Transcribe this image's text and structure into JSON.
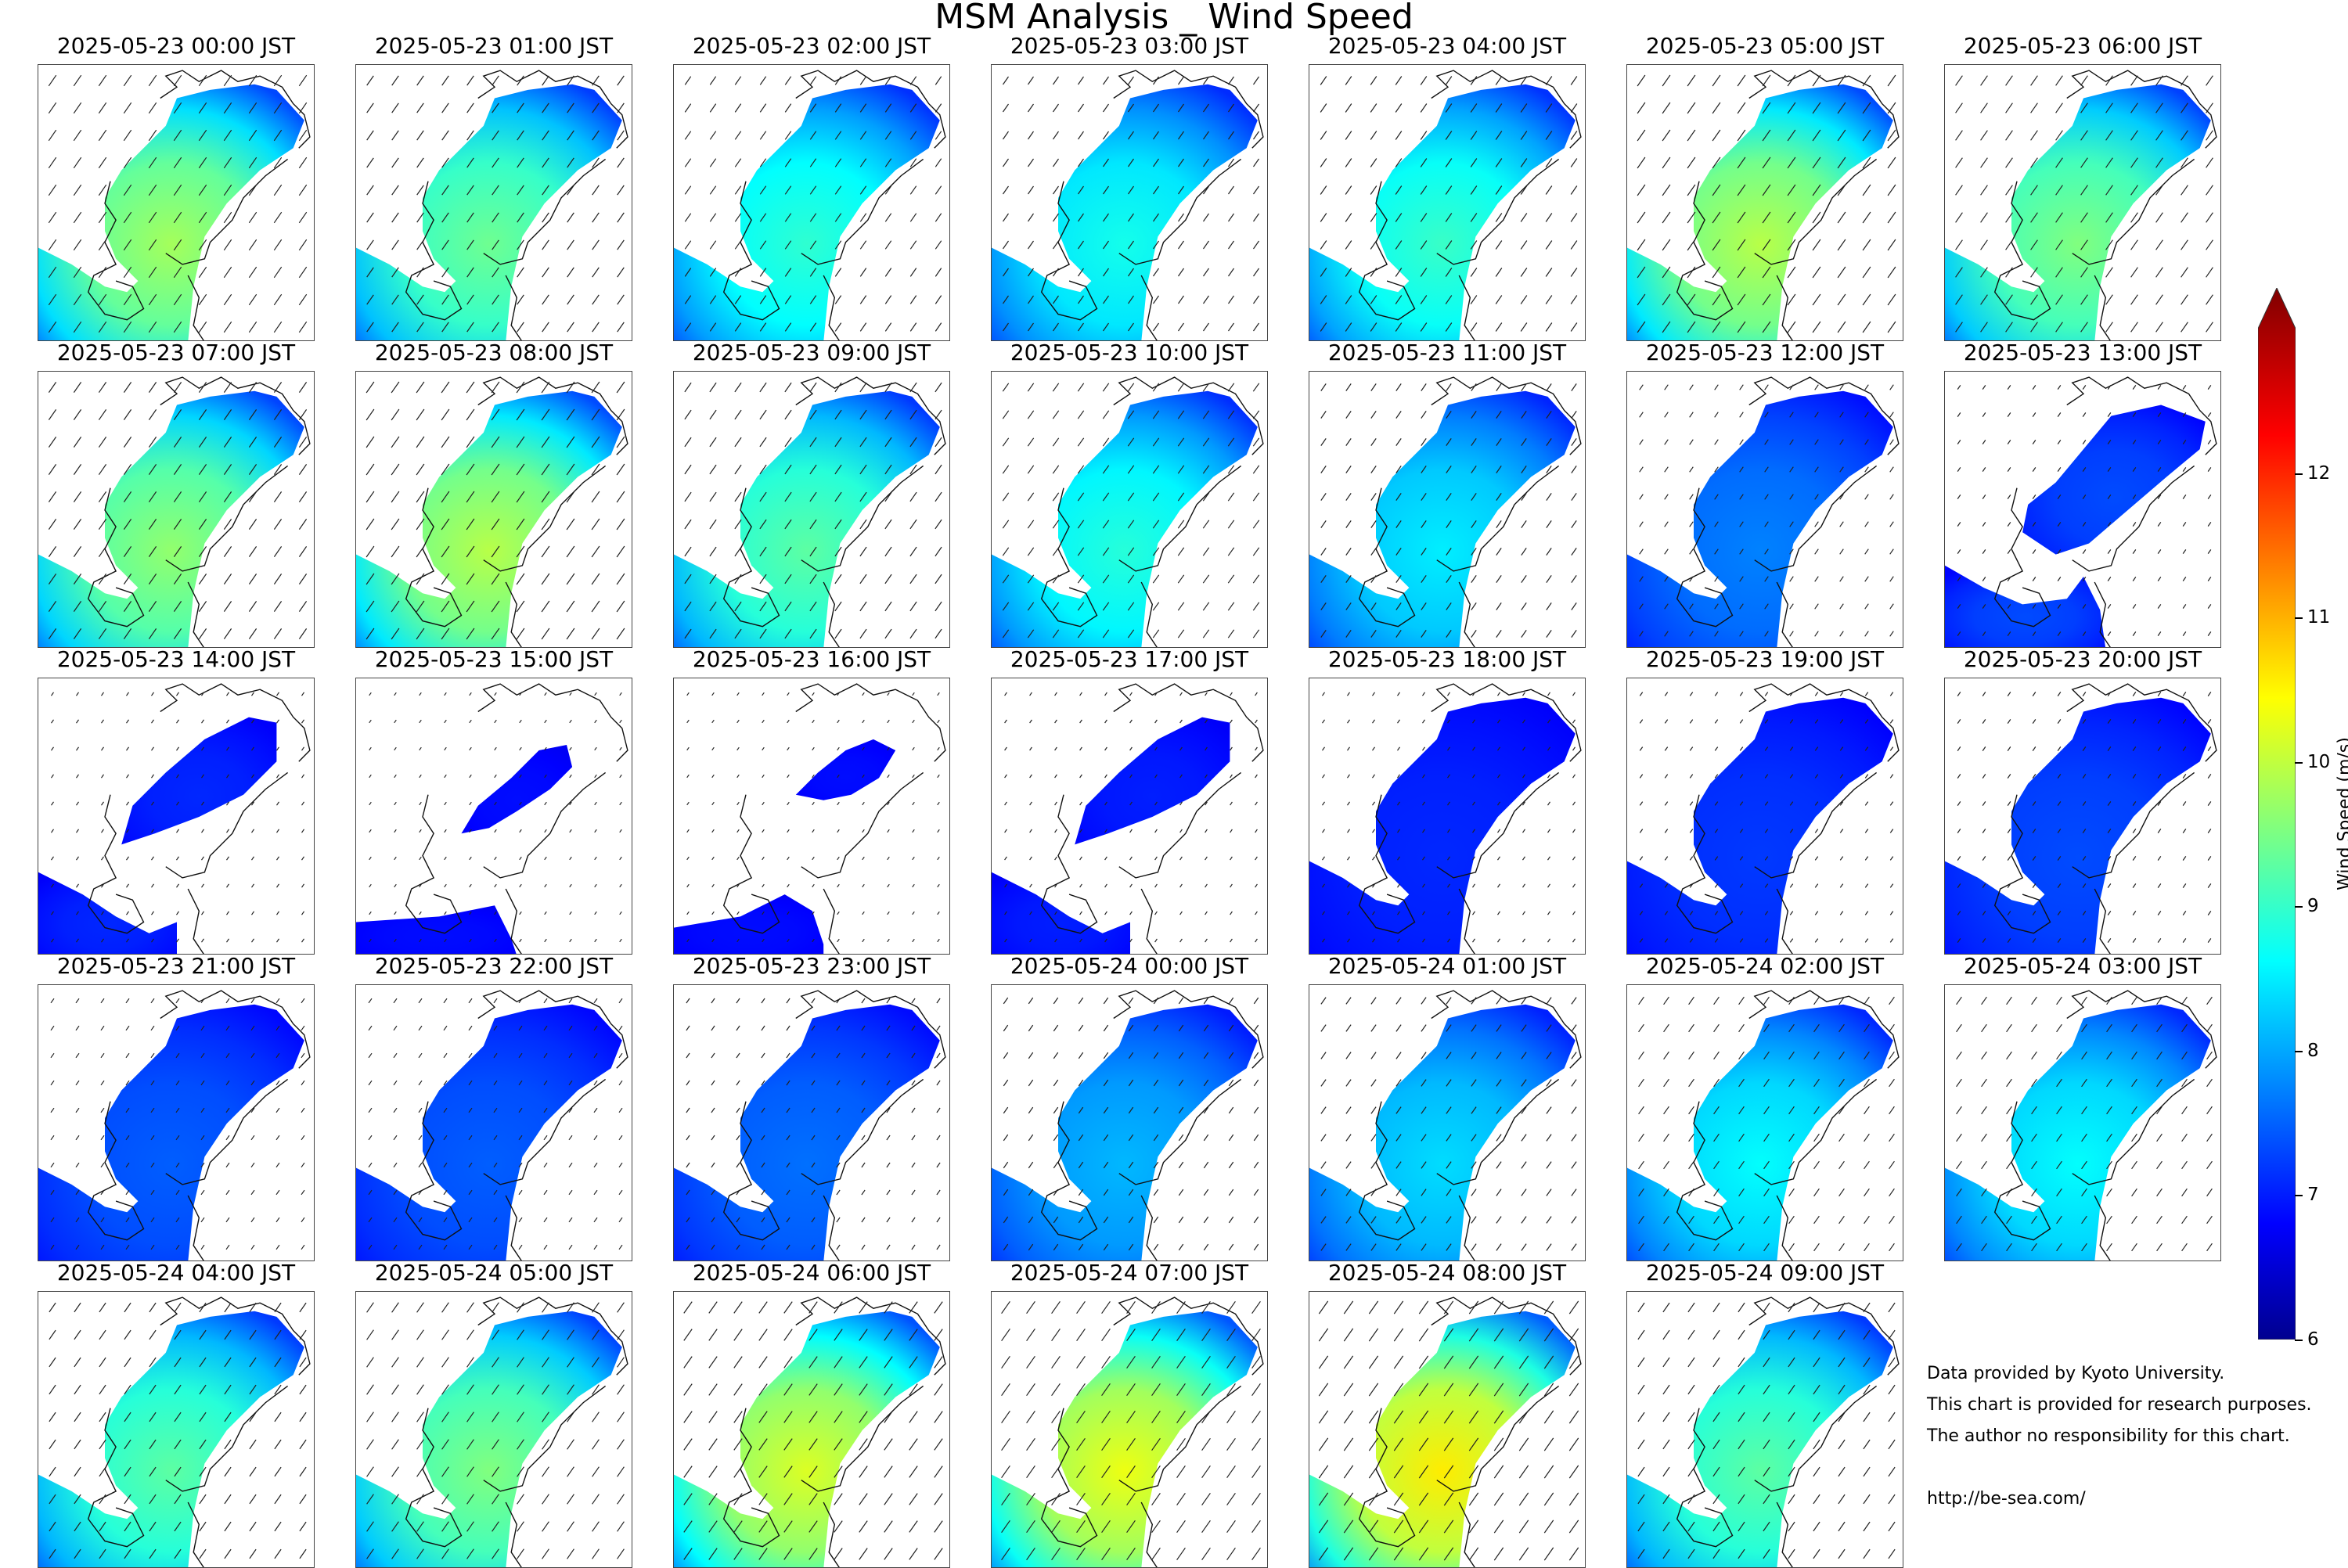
{
  "chart_data": {
    "type": "heatmap",
    "title": "MSM Analysis _ Wind Speed",
    "colorbar": {
      "label": "Wind Speed (m/s)",
      "range": [
        6,
        13
      ],
      "ticks": [
        "6",
        "7",
        "8",
        "9",
        "10",
        "11",
        "12"
      ],
      "extend": "max",
      "colormap": "jet"
    },
    "panels": [
      {
        "label": "2025-05-23 00:00 JST",
        "level": 0.48,
        "shape": "full"
      },
      {
        "label": "2025-05-23 01:00 JST",
        "level": 0.42,
        "shape": "full"
      },
      {
        "label": "2025-05-23 02:00 JST",
        "level": 0.35,
        "shape": "full"
      },
      {
        "label": "2025-05-23 03:00 JST",
        "level": 0.32,
        "shape": "full"
      },
      {
        "label": "2025-05-23 04:00 JST",
        "level": 0.36,
        "shape": "full"
      },
      {
        "label": "2025-05-23 05:00 JST",
        "level": 0.5,
        "shape": "full"
      },
      {
        "label": "2025-05-23 06:00 JST",
        "level": 0.44,
        "shape": "full"
      },
      {
        "label": "2025-05-23 07:00 JST",
        "level": 0.46,
        "shape": "full"
      },
      {
        "label": "2025-05-23 08:00 JST",
        "level": 0.5,
        "shape": "full"
      },
      {
        "label": "2025-05-23 09:00 JST",
        "level": 0.4,
        "shape": "full"
      },
      {
        "label": "2025-05-23 10:00 JST",
        "level": 0.34,
        "shape": "full"
      },
      {
        "label": "2025-05-23 11:00 JST",
        "level": 0.28,
        "shape": "full"
      },
      {
        "label": "2025-05-23 12:00 JST",
        "level": 0.16,
        "shape": "full"
      },
      {
        "label": "2025-05-23 13:00 JST",
        "level": 0.1,
        "shape": "split"
      },
      {
        "label": "2025-05-23 14:00 JST",
        "level": 0.06,
        "shape": "blob"
      },
      {
        "label": "2025-05-23 15:00 JST",
        "level": 0.03,
        "shape": "small"
      },
      {
        "label": "2025-05-23 16:00 JST",
        "level": 0.03,
        "shape": "tiny"
      },
      {
        "label": "2025-05-23 17:00 JST",
        "level": 0.05,
        "shape": "blob"
      },
      {
        "label": "2025-05-23 18:00 JST",
        "level": 0.06,
        "shape": "full"
      },
      {
        "label": "2025-05-23 19:00 JST",
        "level": 0.08,
        "shape": "full"
      },
      {
        "label": "2025-05-23 20:00 JST",
        "level": 0.1,
        "shape": "full"
      },
      {
        "label": "2025-05-23 21:00 JST",
        "level": 0.12,
        "shape": "full"
      },
      {
        "label": "2025-05-23 22:00 JST",
        "level": 0.12,
        "shape": "full"
      },
      {
        "label": "2025-05-23 23:00 JST",
        "level": 0.14,
        "shape": "full"
      },
      {
        "label": "2025-05-24 00:00 JST",
        "level": 0.22,
        "shape": "full"
      },
      {
        "label": "2025-05-24 01:00 JST",
        "level": 0.26,
        "shape": "full"
      },
      {
        "label": "2025-05-24 02:00 JST",
        "level": 0.3,
        "shape": "full"
      },
      {
        "label": "2025-05-24 03:00 JST",
        "level": 0.3,
        "shape": "full"
      },
      {
        "label": "2025-05-24 04:00 JST",
        "level": 0.4,
        "shape": "full"
      },
      {
        "label": "2025-05-24 05:00 JST",
        "level": 0.44,
        "shape": "full"
      },
      {
        "label": "2025-05-24 06:00 JST",
        "level": 0.54,
        "shape": "full"
      },
      {
        "label": "2025-05-24 07:00 JST",
        "level": 0.56,
        "shape": "full"
      },
      {
        "label": "2025-05-24 08:00 JST",
        "level": 0.6,
        "shape": "full"
      },
      {
        "label": "2025-05-24 09:00 JST",
        "level": 0.4,
        "shape": "full"
      }
    ]
  },
  "credits": {
    "line1": "Data provided by Kyoto University.",
    "line2": "This chart is provided for research purposes.",
    "line3": "The author no responsibility for this chart.",
    "line4": "http://be-sea.com/"
  }
}
